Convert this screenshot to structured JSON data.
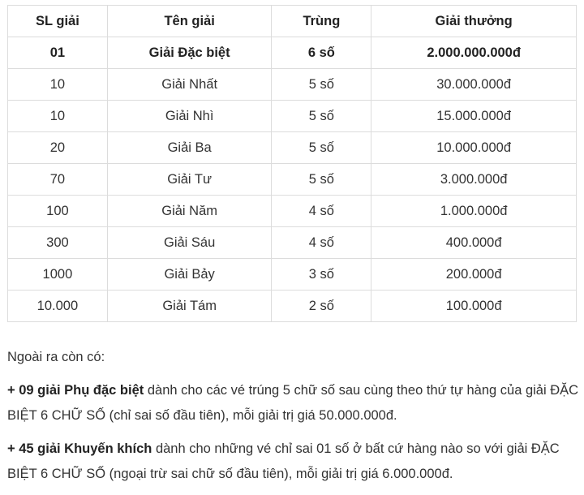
{
  "table": {
    "headers": [
      "SL giải",
      "Tên giải",
      "Trùng",
      "Giải thưởng"
    ],
    "rows": [
      [
        "01",
        "Giải Đặc biệt",
        "6 số",
        "2.000.000.000đ"
      ],
      [
        "10",
        "Giải Nhất",
        "5 số",
        "30.000.000đ"
      ],
      [
        "10",
        "Giải Nhì",
        "5 số",
        "15.000.000đ"
      ],
      [
        "20",
        "Giải Ba",
        "5 số",
        "10.000.000đ"
      ],
      [
        "70",
        "Giải Tư",
        "5 số",
        "3.000.000đ"
      ],
      [
        "100",
        "Giải Năm",
        "4 số",
        "1.000.000đ"
      ],
      [
        "300",
        "Giải Sáu",
        "4 số",
        "400.000đ"
      ],
      [
        "1000",
        "Giải Bảy",
        "3 số",
        "200.000đ"
      ],
      [
        "10.000",
        "Giải Tám",
        "2 số",
        "100.000đ"
      ]
    ]
  },
  "notes": {
    "intro": "Ngoài ra còn có:",
    "items": [
      {
        "bold": "+ 09 giải Phụ đặc biệt",
        "text": " dành cho các vé trúng 5 chữ số sau cùng theo thứ tự hàng của giải ĐẶC BIỆT 6 CHỮ SỐ (chỉ sai số đầu tiên), mỗi giải trị giá 50.000.000đ."
      },
      {
        "bold": "+ 45 giải Khuyến khích",
        "text": " dành cho những vé chỉ sai 01 số ở bất cứ hàng nào so với giải ĐẶC BIỆT 6 CHỮ SỐ (ngoại trừ sai chữ số đầu tiên), mỗi giải trị giá 6.000.000đ."
      }
    ]
  }
}
